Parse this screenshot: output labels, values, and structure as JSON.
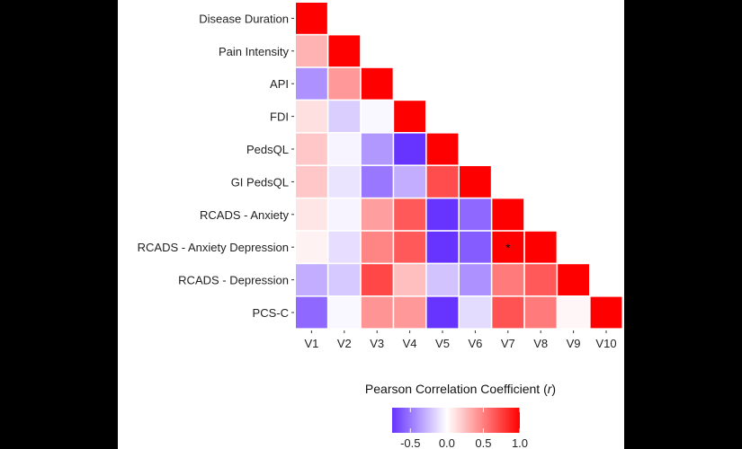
{
  "chart_data": {
    "type": "heatmap",
    "layout": "lower-triangle",
    "title": "",
    "y_labels": [
      "Disease Duration",
      "Pain Intensity",
      "API",
      "FDI",
      "PedsQL",
      "GI PedsQL",
      "RCADS - Anxiety",
      "RCADS - Anxiety Depression",
      "RCADS - Depression",
      "PCS-C"
    ],
    "x_labels": [
      "V1",
      "V2",
      "V3",
      "V4",
      "V5",
      "V6",
      "V7",
      "V8",
      "V9",
      "V10"
    ],
    "values": [
      [
        1.0
      ],
      [
        0.3,
        1.0
      ],
      [
        -0.4,
        0.4,
        1.0
      ],
      [
        0.12,
        -0.18,
        -0.03,
        1.0
      ],
      [
        0.22,
        -0.04,
        -0.38,
        -0.8,
        1.0
      ],
      [
        0.22,
        -0.1,
        -0.5,
        -0.3,
        0.7,
        1.0
      ],
      [
        0.1,
        -0.04,
        0.38,
        0.65,
        -0.85,
        -0.55,
        1.0
      ],
      [
        0.05,
        -0.12,
        0.48,
        0.65,
        -0.95,
        -0.6,
        1.0,
        1.0
      ],
      [
        -0.3,
        -0.2,
        0.72,
        0.25,
        -0.22,
        -0.4,
        0.52,
        0.65,
        1.0
      ],
      [
        -0.55,
        -0.03,
        0.42,
        0.4,
        -0.8,
        -0.13,
        0.68,
        0.52,
        0.03,
        1.0
      ]
    ],
    "annotations": [
      {
        "row": 7,
        "col": 6,
        "text": "*"
      }
    ],
    "legend": {
      "title": "Pearson Correlation Coefficient (",
      "title_var": "r",
      "title_end": ")",
      "range": [
        -0.75,
        1.0
      ],
      "ticks": [
        "-0.5",
        "0.0",
        "0.5",
        "1.0"
      ],
      "tick_values": [
        -0.5,
        0.0,
        0.5,
        1.0
      ],
      "colors": {
        "low": "#6633ff",
        "mid": "#ffffff",
        "high": "#ff0000"
      }
    }
  }
}
